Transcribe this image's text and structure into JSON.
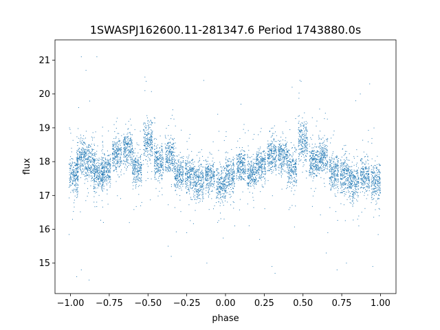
{
  "chart_data": {
    "type": "scatter",
    "title": "1SWASPJ162600.11-281347.6 Period 1743880.0s",
    "xlabel": "phase",
    "ylabel": "flux",
    "xlim": [
      -1.1,
      1.1
    ],
    "ylim": [
      14.1,
      21.6
    ],
    "xticks": [
      -1.0,
      -0.75,
      -0.5,
      -0.25,
      0.0,
      0.25,
      0.5,
      0.75,
      1.0
    ],
    "xtick_labels": [
      "−1.00",
      "−0.75",
      "−0.50",
      "−0.25",
      "0.00",
      "0.25",
      "0.50",
      "0.75",
      "1.00"
    ],
    "yticks": [
      15,
      16,
      17,
      18,
      19,
      20,
      21
    ],
    "ytick_labels": [
      "15",
      "16",
      "17",
      "18",
      "19",
      "20",
      "21"
    ],
    "grid": false,
    "legend": "none",
    "marker_color": "#1f77b4",
    "series": [
      {
        "clusters": [
          {
            "x": -0.98,
            "y": 17.6,
            "spread": 0.5
          },
          {
            "x": -0.93,
            "y": 18.1,
            "spread": 0.5
          },
          {
            "x": -0.87,
            "y": 18.0,
            "spread": 0.45
          },
          {
            "x": -0.82,
            "y": 17.6,
            "spread": 0.45
          },
          {
            "x": -0.77,
            "y": 17.8,
            "spread": 0.45
          },
          {
            "x": -0.7,
            "y": 18.2,
            "spread": 0.45
          },
          {
            "x": -0.63,
            "y": 18.4,
            "spread": 0.45
          },
          {
            "x": -0.57,
            "y": 17.8,
            "spread": 0.5
          },
          {
            "x": -0.5,
            "y": 18.6,
            "spread": 0.5
          },
          {
            "x": -0.43,
            "y": 18.0,
            "spread": 0.45
          },
          {
            "x": -0.36,
            "y": 18.2,
            "spread": 0.5
          },
          {
            "x": -0.3,
            "y": 17.7,
            "spread": 0.5
          },
          {
            "x": -0.23,
            "y": 17.6,
            "spread": 0.5
          },
          {
            "x": -0.17,
            "y": 17.4,
            "spread": 0.5
          },
          {
            "x": -0.1,
            "y": 17.6,
            "spread": 0.45
          },
          {
            "x": -0.03,
            "y": 17.3,
            "spread": 0.45
          },
          {
            "x": 0.03,
            "y": 17.6,
            "spread": 0.45
          },
          {
            "x": 0.1,
            "y": 17.9,
            "spread": 0.45
          },
          {
            "x": 0.17,
            "y": 17.7,
            "spread": 0.45
          },
          {
            "x": 0.23,
            "y": 17.9,
            "spread": 0.45
          },
          {
            "x": 0.3,
            "y": 18.2,
            "spread": 0.45
          },
          {
            "x": 0.37,
            "y": 18.2,
            "spread": 0.45
          },
          {
            "x": 0.43,
            "y": 17.8,
            "spread": 0.5
          },
          {
            "x": 0.5,
            "y": 18.6,
            "spread": 0.5
          },
          {
            "x": 0.57,
            "y": 18.0,
            "spread": 0.45
          },
          {
            "x": 0.63,
            "y": 18.2,
            "spread": 0.5
          },
          {
            "x": 0.7,
            "y": 17.7,
            "spread": 0.5
          },
          {
            "x": 0.77,
            "y": 17.6,
            "spread": 0.5
          },
          {
            "x": 0.83,
            "y": 17.4,
            "spread": 0.5
          },
          {
            "x": 0.9,
            "y": 17.6,
            "spread": 0.45
          },
          {
            "x": 0.97,
            "y": 17.4,
            "spread": 0.45
          }
        ],
        "outliers": [
          {
            "x": -0.93,
            "y": 21.1
          },
          {
            "x": -0.83,
            "y": 21.1
          },
          {
            "x": -0.9,
            "y": 20.7
          },
          {
            "x": -0.52,
            "y": 20.5
          },
          {
            "x": -0.52,
            "y": 20.1
          },
          {
            "x": -0.46,
            "y": 19.3
          },
          {
            "x": -0.14,
            "y": 20.4
          },
          {
            "x": -0.05,
            "y": 19.4
          },
          {
            "x": 0.1,
            "y": 19.7
          },
          {
            "x": 0.48,
            "y": 20.4
          },
          {
            "x": 0.43,
            "y": 20.2
          },
          {
            "x": 0.56,
            "y": 19.3
          },
          {
            "x": 0.87,
            "y": 20.0
          },
          {
            "x": 0.93,
            "y": 20.3
          },
          {
            "x": 0.84,
            "y": 19.8
          },
          {
            "x": -0.93,
            "y": 14.8
          },
          {
            "x": -0.96,
            "y": 14.6
          },
          {
            "x": -0.88,
            "y": 14.5
          },
          {
            "x": -0.37,
            "y": 15.5
          },
          {
            "x": -0.35,
            "y": 15.2
          },
          {
            "x": -0.12,
            "y": 15.0
          },
          {
            "x": 0.3,
            "y": 14.9
          },
          {
            "x": 0.32,
            "y": 14.7
          },
          {
            "x": 0.65,
            "y": 15.3
          },
          {
            "x": 0.72,
            "y": 14.8
          },
          {
            "x": 0.78,
            "y": 15.0
          },
          {
            "x": 0.95,
            "y": 14.9
          },
          {
            "x": -0.62,
            "y": 16.2
          },
          {
            "x": -0.25,
            "y": 15.9
          },
          {
            "x": 0.06,
            "y": 16.1
          },
          {
            "x": 0.22,
            "y": 15.7
          },
          {
            "x": 0.66,
            "y": 15.9
          },
          {
            "x": 0.86,
            "y": 16.1
          }
        ]
      }
    ]
  }
}
